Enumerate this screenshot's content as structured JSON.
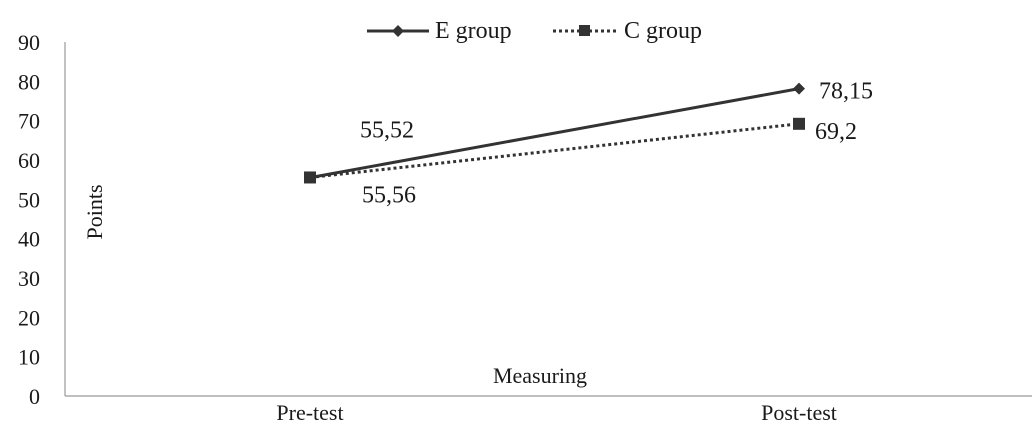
{
  "chart_data": {
    "type": "line",
    "categories": [
      "Pre-test",
      "Post-test"
    ],
    "series": [
      {
        "name": "E group",
        "values": [
          55.52,
          78.15
        ],
        "labels": [
          "55,52",
          "78,15"
        ],
        "style": "solid",
        "marker": "diamond",
        "color": "#333333"
      },
      {
        "name": "C group",
        "values": [
          55.56,
          69.2
        ],
        "labels": [
          "55,56",
          "69,2"
        ],
        "style": "dotted",
        "marker": "square",
        "color": "#333333"
      }
    ],
    "xlabel": "Measuring",
    "ylabel": "Points",
    "ylim": [
      0,
      90
    ],
    "yticks": [
      "0",
      "10",
      "20",
      "30",
      "40",
      "50",
      "60",
      "70",
      "80",
      "90"
    ],
    "grid": false,
    "legend_position": "top-center"
  }
}
